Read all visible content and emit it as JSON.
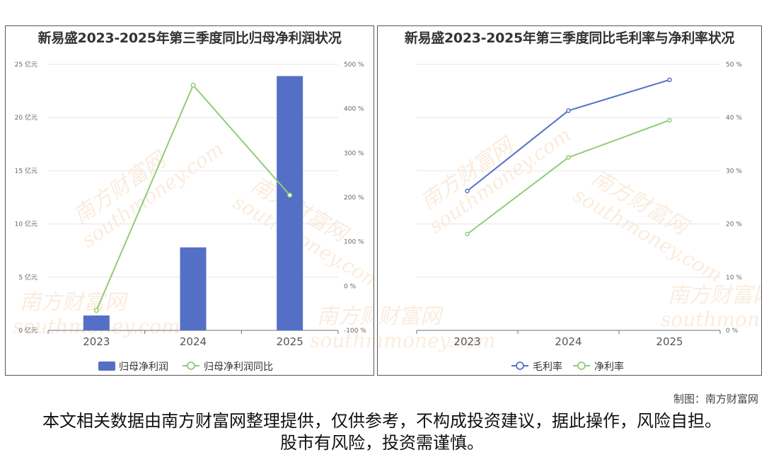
{
  "credit": "制图：南方财富网",
  "disclaimer": "本文相关数据由南方财富网整理提供，仅供参考，不构成投资建议，据此操作，风险自担。股市有风险，投资需谨慎。",
  "watermark": {
    "cn": "南方财富网",
    "en": "southmoney.com"
  },
  "chart_data": [
    {
      "type": "bar",
      "title": "新易盛2023-2025年第三季度同比归母净利润状况",
      "categories": [
        "2023",
        "2024",
        "2025"
      ],
      "series": [
        {
          "name": "归母净利润",
          "chart": "bar",
          "axis": "left",
          "values": [
            1.4,
            7.8,
            23.9
          ],
          "color": "#5470c6"
        },
        {
          "name": "归母净利润同比",
          "chart": "line",
          "axis": "right",
          "values": [
            -55,
            453,
            205
          ],
          "color": "#91cc75"
        }
      ],
      "y_left": {
        "range": [
          0,
          25
        ],
        "ticks": [
          "0 亿元",
          "5 亿元",
          "10 亿元",
          "15 亿元",
          "20 亿元",
          "25 亿元"
        ]
      },
      "y_right": {
        "range": [
          -100,
          500
        ],
        "ticks": [
          "-100 %",
          "0 %",
          "100 %",
          "200 %",
          "300 %",
          "400 %",
          "500 %"
        ]
      },
      "grid": true,
      "legend": "bottom"
    },
    {
      "type": "line",
      "title": "新易盛2023-2025年第三季度同比毛利率与净利率状况",
      "categories": [
        "2023",
        "2024",
        "2025"
      ],
      "series": [
        {
          "name": "毛利率",
          "values": [
            26.2,
            41.3,
            47.1
          ],
          "color": "#5470c6"
        },
        {
          "name": "净利率",
          "values": [
            18.1,
            32.5,
            39.5
          ],
          "color": "#91cc75"
        }
      ],
      "y_right": {
        "range": [
          0,
          50
        ],
        "ticks": [
          "0 %",
          "10 %",
          "20 %",
          "30 %",
          "40 %",
          "50 %"
        ]
      },
      "grid": true,
      "legend": "bottom"
    }
  ]
}
